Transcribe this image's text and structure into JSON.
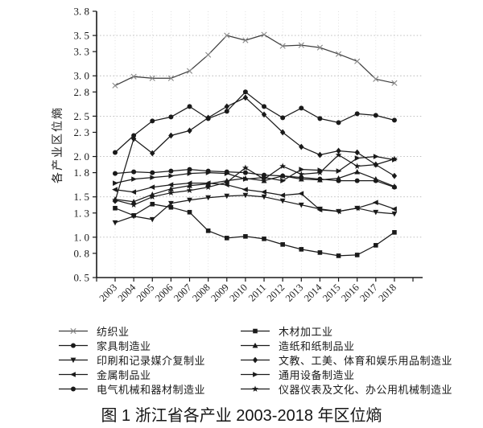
{
  "figure": {
    "caption": "图 1 浙江省各产业 2003-2018 年区位熵"
  },
  "colors": {
    "line": "#1a1a1a",
    "textile_line": "#3f3f3f",
    "x_marker": "#8a8a8a",
    "grid": "#b5b5b5",
    "year_grid": "#d4d4d4",
    "axis": "#1a1a1a",
    "text": "#1a1a1a"
  },
  "chart_data": {
    "type": "line",
    "title": "",
    "xlabel": "",
    "ylabel": "各产业区位熵",
    "ylim": [
      0.5,
      3.8
    ],
    "grid": "dotted-horizontal-and-vertical",
    "legend_position": "bottom, two columns",
    "y_ticks": [
      0.5,
      0.8,
      1.0,
      1.3,
      1.5,
      1.8,
      2.0,
      2.3,
      2.5,
      2.8,
      3.0,
      3.3,
      3.5,
      3.8
    ],
    "y_tick_labels": [
      "0. 5",
      "0. 8",
      "1. 0",
      "1. 3",
      "1. 5",
      "1. 8",
      "2. 0",
      "2. 3",
      "2. 5",
      "2. 8",
      "3. 0",
      "3. 3",
      "3. 5",
      "3. 8"
    ],
    "grid_y_values": [
      1.0,
      1.5,
      2.0,
      2.5,
      3.0,
      3.5
    ],
    "categories": [
      "2003",
      "2004",
      "2005",
      "2006",
      "2007",
      "2008",
      "2009",
      "2010",
      "2011",
      "2012",
      "2013",
      "2014",
      "2015",
      "2016",
      "2017",
      "2018"
    ],
    "series": [
      {
        "name": "纺织业",
        "marker": "x",
        "legend_column": "left",
        "values": [
          2.88,
          2.99,
          2.97,
          2.97,
          3.06,
          3.26,
          3.5,
          3.44,
          3.51,
          3.37,
          3.38,
          3.35,
          3.27,
          3.18,
          2.96,
          2.91
        ]
      },
      {
        "name": "木材加工业",
        "marker": "square",
        "legend_column": "right",
        "values": [
          1.36,
          1.27,
          1.41,
          1.37,
          1.31,
          1.08,
          0.99,
          1.01,
          0.98,
          0.91,
          0.85,
          0.81,
          0.77,
          0.78,
          0.9,
          1.06
        ]
      },
      {
        "name": "家具制造业",
        "marker": "circle",
        "legend_column": "left",
        "values": [
          2.05,
          2.26,
          2.44,
          2.49,
          2.62,
          2.47,
          2.56,
          2.8,
          2.62,
          2.48,
          2.6,
          2.47,
          2.42,
          2.53,
          2.51,
          2.45
        ]
      },
      {
        "name": "造纸和纸制品业",
        "marker": "triangle-up",
        "legend_column": "right",
        "values": [
          1.47,
          1.44,
          1.53,
          1.6,
          1.64,
          1.66,
          1.7,
          1.73,
          1.7,
          1.76,
          1.72,
          1.71,
          1.73,
          1.81,
          1.72,
          1.63
        ]
      },
      {
        "name": "印刷和记录媒介复制业",
        "marker": "triangle-down",
        "legend_column": "left",
        "values": [
          1.18,
          1.26,
          1.22,
          1.42,
          1.46,
          1.49,
          1.51,
          1.52,
          1.5,
          1.45,
          1.4,
          1.35,
          1.32,
          1.36,
          1.31,
          1.29
        ]
      },
      {
        "name": "文教、工美、体育和娱乐用品制造业",
        "marker": "diamond",
        "legend_column": "right",
        "values": [
          1.45,
          2.22,
          2.04,
          2.26,
          2.32,
          2.48,
          2.62,
          2.73,
          2.52,
          2.3,
          2.12,
          2.02,
          2.07,
          2.05,
          1.9,
          1.76
        ]
      },
      {
        "name": "金属制品业",
        "marker": "triangle-left",
        "legend_column": "left",
        "values": [
          1.59,
          1.56,
          1.62,
          1.65,
          1.67,
          1.67,
          1.65,
          1.59,
          1.56,
          1.52,
          1.54,
          1.34,
          1.32,
          1.36,
          1.43,
          1.35
        ]
      },
      {
        "name": "通用设备制造业",
        "marker": "triangle-right",
        "legend_column": "right",
        "values": [
          1.67,
          1.72,
          1.74,
          1.76,
          1.79,
          1.8,
          1.79,
          1.72,
          1.74,
          1.7,
          1.84,
          1.83,
          1.82,
          1.98,
          2.0,
          1.96
        ]
      },
      {
        "name": "电气机械和器材制造业",
        "marker": "circle",
        "legend_column": "left",
        "values": [
          1.79,
          1.81,
          1.8,
          1.82,
          1.84,
          1.82,
          1.81,
          1.8,
          1.77,
          1.76,
          1.74,
          1.72,
          1.7,
          1.7,
          1.7,
          1.62
        ]
      },
      {
        "name": "仪器仪表及文化、办公用机械制造业",
        "marker": "star",
        "legend_column": "right",
        "values": [
          1.46,
          1.4,
          1.5,
          1.55,
          1.58,
          1.62,
          1.68,
          1.86,
          1.72,
          1.88,
          1.78,
          1.8,
          2.02,
          1.88,
          1.9,
          1.97
        ]
      }
    ]
  }
}
